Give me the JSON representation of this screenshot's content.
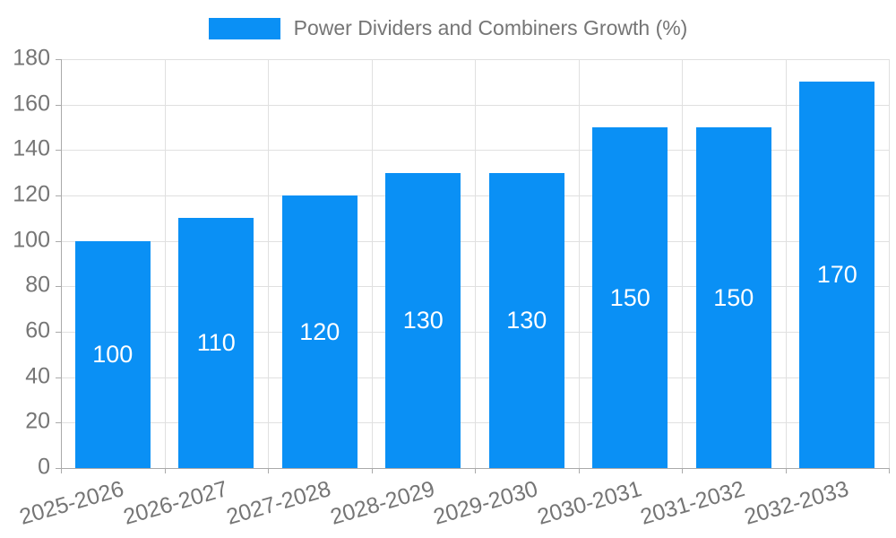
{
  "legend": {
    "label": "Power Dividers and Combiners Growth (%)"
  },
  "chart_data": {
    "type": "bar",
    "title": "Power Dividers and Combiners Growth (%)",
    "series_name": "Power Dividers and Combiners Growth (%)",
    "categories": [
      "2025-2026",
      "2026-2027",
      "2027-2028",
      "2028-2029",
      "2029-2030",
      "2030-2031",
      "2031-2032",
      "2032-2033"
    ],
    "values": [
      100,
      110,
      120,
      130,
      130,
      150,
      150,
      170
    ],
    "data_labels": [
      "100",
      "110",
      "120",
      "130",
      "130",
      "150",
      "150",
      "170"
    ],
    "xlabel": "",
    "ylabel": "",
    "ylim": [
      0,
      180
    ],
    "ytick_step": 20,
    "ytick_labels": [
      "0",
      "20",
      "40",
      "60",
      "80",
      "100",
      "120",
      "140",
      "160",
      "180"
    ],
    "grid": true,
    "legend_position": "top-center",
    "data_label_position": "inside-center",
    "x_label_rotation_deg": -16,
    "colors": {
      "bar": "#0A90F5",
      "grid_line": "#E0E0E0",
      "axis_line": "#AAAAAA",
      "tick_text": "#757575",
      "data_label_text": "#FFFFFF",
      "background": "#FFFFFF"
    }
  }
}
